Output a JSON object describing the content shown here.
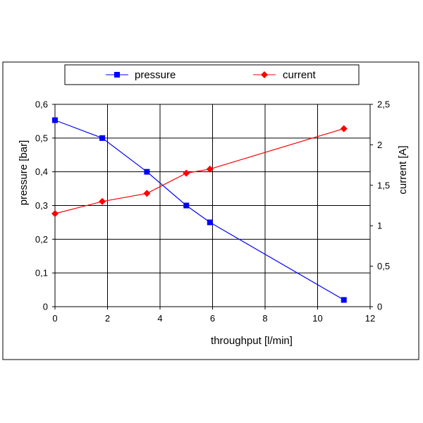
{
  "chart_data": {
    "type": "line",
    "xlabel": "throughput [l/min]",
    "ylabel_left": "pressure [bar]",
    "ylabel_right": "current [A]",
    "xlim": [
      0,
      12
    ],
    "ylim_left": [
      0,
      0.6
    ],
    "ylim_right": [
      0,
      2.5
    ],
    "x_ticks": [
      "0",
      "2",
      "4",
      "6",
      "8",
      "10",
      "12"
    ],
    "y_left_ticks": [
      "0",
      "0,1",
      "0,2",
      "0,3",
      "0,4",
      "0,5",
      "0,6"
    ],
    "y_right_ticks": [
      "0",
      "0,5",
      "1",
      "1,5",
      "2",
      "2,5"
    ],
    "grid": true,
    "legend_position": "top",
    "series": [
      {
        "name": "pressure",
        "axis": "left",
        "color": "#0000ff",
        "marker": "square",
        "x": [
          0,
          1.8,
          3.5,
          5.0,
          5.9,
          11.0
        ],
        "values": [
          0.553,
          0.5,
          0.4,
          0.3,
          0.25,
          0.02
        ]
      },
      {
        "name": "current",
        "axis": "right",
        "color": "#ff0000",
        "marker": "diamond",
        "x": [
          0,
          1.8,
          3.5,
          5.0,
          5.9,
          11.0
        ],
        "values": [
          1.15,
          1.3,
          1.4,
          1.65,
          1.7,
          2.2
        ]
      }
    ]
  }
}
